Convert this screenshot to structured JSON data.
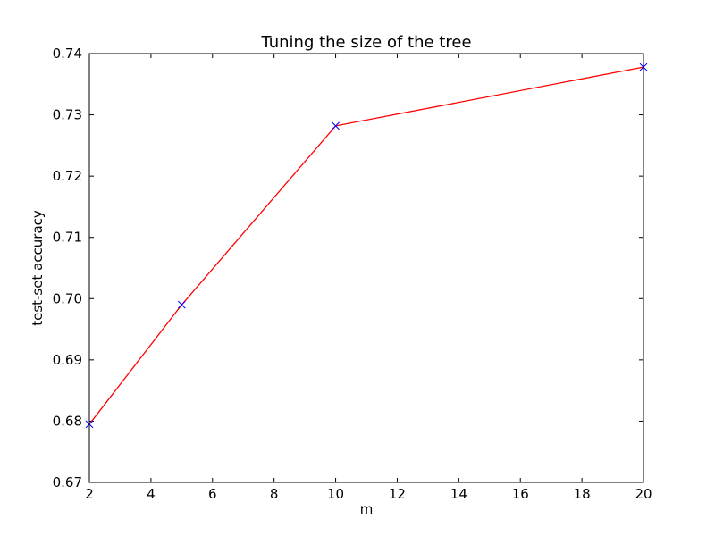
{
  "chart_data": {
    "type": "line",
    "title": "Tuning the size of the tree",
    "xlabel": "m",
    "ylabel": "test-set accuracy",
    "xlim": [
      2,
      20
    ],
    "ylim": [
      0.67,
      0.74
    ],
    "xticks": [
      "2",
      "4",
      "6",
      "8",
      "10",
      "12",
      "14",
      "16",
      "18",
      "20"
    ],
    "yticks": [
      "0.67",
      "0.68",
      "0.69",
      "0.70",
      "0.71",
      "0.72",
      "0.73",
      "0.74"
    ],
    "grid": false,
    "series": [
      {
        "x": [
          2,
          5,
          10,
          20
        ],
        "y": [
          0.6795,
          0.699,
          0.7282,
          0.7378
        ],
        "line_color": "#ff0000",
        "marker": "x",
        "marker_color": "#0000ff"
      }
    ]
  }
}
